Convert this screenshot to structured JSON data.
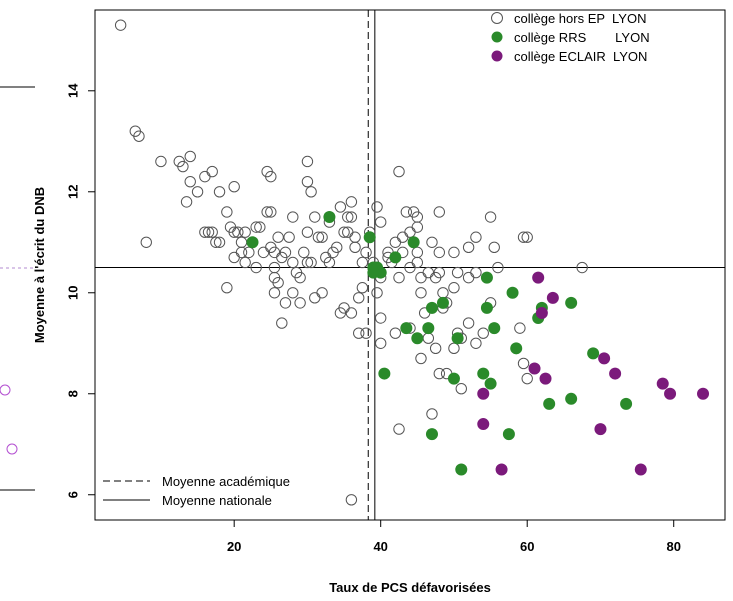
{
  "chart_data": {
    "type": "scatter",
    "xlabel": "Taux de PCS défavorisées",
    "ylabel": "Moyenne à l'écrit du DNB",
    "xlim": [
      1,
      87
    ],
    "ylim": [
      5.5,
      15.6
    ],
    "xticks": [
      20,
      40,
      60,
      80
    ],
    "yticks": [
      6,
      8,
      10,
      12,
      14
    ],
    "grid": false,
    "legend_position": "top-right",
    "reference_lines": {
      "moyenne_academique": {
        "label": "Moyenne académique",
        "style": "dashed",
        "x": 38.3,
        "y": 10.5
      },
      "moyenne_nationale": {
        "label": "Moyenne nationale",
        "style": "solid",
        "x": 39.2,
        "y": 10.5
      }
    },
    "series": [
      {
        "name": "collège hors EP  LYON",
        "marker": "open-circle",
        "color": "#555555",
        "points": [
          [
            4.5,
            15.3
          ],
          [
            6.5,
            13.2
          ],
          [
            7,
            13.1
          ],
          [
            8,
            11
          ],
          [
            10,
            12.6
          ],
          [
            12.5,
            12.6
          ],
          [
            13,
            12.5
          ],
          [
            14,
            12.7
          ],
          [
            13.5,
            11.8
          ],
          [
            14,
            12.2
          ],
          [
            15,
            12
          ],
          [
            16,
            12.3
          ],
          [
            17,
            12.4
          ],
          [
            18,
            12
          ],
          [
            16,
            11.2
          ],
          [
            16.5,
            11.2
          ],
          [
            17,
            11.2
          ],
          [
            17.5,
            11
          ],
          [
            18,
            11
          ],
          [
            19,
            11.6
          ],
          [
            19.5,
            11.3
          ],
          [
            20,
            11.2
          ],
          [
            20,
            10.7
          ],
          [
            20.5,
            11.2
          ],
          [
            21,
            11
          ],
          [
            21,
            10.8
          ],
          [
            21.5,
            11.2
          ],
          [
            20,
            12.1
          ],
          [
            19,
            10.1
          ],
          [
            22,
            10.8
          ],
          [
            23,
            11.3
          ],
          [
            23.5,
            11.3
          ],
          [
            24,
            10.8
          ],
          [
            24.5,
            11.6
          ],
          [
            25,
            11.6
          ],
          [
            25,
            10.9
          ],
          [
            25.5,
            10.8
          ],
          [
            24.5,
            12.4
          ],
          [
            25,
            12.3
          ],
          [
            25.5,
            10.5
          ],
          [
            25.5,
            10.3
          ],
          [
            25.5,
            10
          ],
          [
            26,
            10.2
          ],
          [
            26.5,
            10.7
          ],
          [
            27,
            10.8
          ],
          [
            26.5,
            9.4
          ],
          [
            27,
            9.8
          ],
          [
            28,
            10
          ],
          [
            27.5,
            11.1
          ],
          [
            28,
            11.5
          ],
          [
            28.5,
            10.4
          ],
          [
            29,
            10.3
          ],
          [
            29.5,
            10.8
          ],
          [
            29,
            9.8
          ],
          [
            30,
            10.6
          ],
          [
            30.5,
            10.6
          ],
          [
            30,
            12.2
          ],
          [
            30,
            12.6
          ],
          [
            30.5,
            12
          ],
          [
            30,
            11.2
          ],
          [
            31,
            11.5
          ],
          [
            31.5,
            11.1
          ],
          [
            32,
            11.1
          ],
          [
            32.5,
            10.7
          ],
          [
            32,
            10
          ],
          [
            33,
            11.4
          ],
          [
            33.5,
            10.8
          ],
          [
            34,
            10.9
          ],
          [
            34.5,
            11.7
          ],
          [
            34.5,
            9.6
          ],
          [
            35,
            9.7
          ],
          [
            35,
            11.2
          ],
          [
            35.5,
            11.2
          ],
          [
            36,
            11.5
          ],
          [
            36,
            11.8
          ],
          [
            36.5,
            11.1
          ],
          [
            37,
            9.9
          ],
          [
            37.5,
            10.1
          ],
          [
            37.5,
            10.6
          ],
          [
            38,
            10.8
          ],
          [
            38.5,
            11.2
          ],
          [
            39,
            10.6
          ],
          [
            39.5,
            11.7
          ],
          [
            40,
            11.4
          ],
          [
            40,
            10.3
          ],
          [
            39.5,
            10
          ],
          [
            38,
            9.2
          ],
          [
            40,
            9
          ],
          [
            41,
            10.8
          ],
          [
            41.5,
            10.6
          ],
          [
            42,
            11
          ],
          [
            42.5,
            10.3
          ],
          [
            43,
            10.8
          ],
          [
            43,
            11.1
          ],
          [
            43.5,
            11.6
          ],
          [
            44,
            11.2
          ],
          [
            44.5,
            11.6
          ],
          [
            45,
            11.3
          ],
          [
            45,
            10.8
          ],
          [
            45,
            10.6
          ],
          [
            45.5,
            10.3
          ],
          [
            45.5,
            10
          ],
          [
            46,
            9.6
          ],
          [
            46.5,
            10.4
          ],
          [
            47,
            9.7
          ],
          [
            47.5,
            10.3
          ],
          [
            48,
            10.8
          ],
          [
            48,
            10.4
          ],
          [
            48.5,
            10
          ],
          [
            48.5,
            9.7
          ],
          [
            49,
            9.8
          ],
          [
            50,
            10.8
          ],
          [
            50.5,
            10.4
          ],
          [
            50,
            10.1
          ],
          [
            52,
            10.3
          ],
          [
            53,
            10.4
          ],
          [
            53,
            11.1
          ],
          [
            52,
            9.4
          ],
          [
            53,
            9
          ],
          [
            50,
            8.9
          ],
          [
            50.5,
            9.2
          ],
          [
            51,
            9.1
          ],
          [
            51,
            8.1
          ],
          [
            48,
            8.4
          ],
          [
            49,
            8.4
          ],
          [
            47,
            7.6
          ],
          [
            42.5,
            7.3
          ],
          [
            36,
            5.9
          ],
          [
            40,
            9.5
          ],
          [
            42,
            9.2
          ],
          [
            44,
            9.3
          ],
          [
            46.5,
            9.1
          ],
          [
            45.5,
            8.7
          ],
          [
            47.5,
            8.9
          ],
          [
            55,
            9.8
          ],
          [
            56,
            10.5
          ],
          [
            59,
            9.3
          ],
          [
            60,
            8.3
          ],
          [
            59.5,
            8.6
          ],
          [
            54,
            9.2
          ],
          [
            55.5,
            10.9
          ],
          [
            55,
            11.5
          ],
          [
            48,
            11.6
          ],
          [
            42.5,
            12.4
          ],
          [
            45,
            11.5
          ],
          [
            47,
            11
          ],
          [
            52,
            10.9
          ],
          [
            59.5,
            11.1
          ],
          [
            60,
            11.1
          ],
          [
            67.5,
            10.5
          ],
          [
            37,
            9.2
          ],
          [
            36,
            9.6
          ],
          [
            44,
            10.5
          ],
          [
            41,
            10.7
          ],
          [
            33,
            10.6
          ],
          [
            31,
            9.9
          ],
          [
            35.5,
            11.5
          ],
          [
            36.5,
            10.9
          ],
          [
            22.5,
            11
          ],
          [
            23,
            10.5
          ],
          [
            21.5,
            10.6
          ],
          [
            26,
            11.1
          ],
          [
            28,
            10.6
          ]
        ]
      },
      {
        "name": "collège RRS        LYON",
        "marker": "filled-circle",
        "color": "#2a8a2a",
        "points": [
          [
            22.5,
            11
          ],
          [
            33,
            11.5
          ],
          [
            38.5,
            11.1
          ],
          [
            39,
            10.5
          ],
          [
            39.5,
            10.5
          ],
          [
            40,
            10.4
          ],
          [
            39,
            10.4
          ],
          [
            42,
            10.7
          ],
          [
            44.5,
            11
          ],
          [
            40.5,
            8.4
          ],
          [
            43.5,
            9.3
          ],
          [
            45,
            9.1
          ],
          [
            46.5,
            9.3
          ],
          [
            47,
            9.7
          ],
          [
            48.5,
            9.8
          ],
          [
            50.5,
            9.1
          ],
          [
            54.5,
            10.3
          ],
          [
            54.5,
            9.7
          ],
          [
            55.5,
            9.3
          ],
          [
            58,
            10
          ],
          [
            61.5,
            9.5
          ],
          [
            62,
            9.7
          ],
          [
            66,
            9.8
          ],
          [
            58.5,
            8.9
          ],
          [
            50,
            8.3
          ],
          [
            54,
            8.4
          ],
          [
            55,
            8.2
          ],
          [
            47,
            7.2
          ],
          [
            51,
            6.5
          ],
          [
            57.5,
            7.2
          ],
          [
            63,
            7.8
          ],
          [
            66,
            7.9
          ],
          [
            69,
            8.8
          ],
          [
            73.5,
            7.8
          ]
        ]
      },
      {
        "name": "collège ECLAIR  LYON",
        "marker": "filled-circle",
        "color": "#7b1a7b",
        "points": [
          [
            61.5,
            10.3
          ],
          [
            63.5,
            9.9
          ],
          [
            62,
            9.6
          ],
          [
            61,
            8.5
          ],
          [
            62.5,
            8.3
          ],
          [
            54,
            8
          ],
          [
            54,
            7.4
          ],
          [
            56.5,
            6.5
          ],
          [
            70.5,
            8.7
          ],
          [
            72,
            8.4
          ],
          [
            70,
            7.3
          ],
          [
            75.5,
            6.5
          ],
          [
            78.5,
            8.2
          ],
          [
            79.5,
            8
          ],
          [
            84,
            8
          ]
        ]
      }
    ],
    "legend": [
      {
        "label": "collège hors EP  LYON",
        "marker": "open-circle"
      },
      {
        "label": "collège RRS        LYON",
        "marker": "filled-circle"
      },
      {
        "label": "collège ECLAIR  LYON",
        "marker": "filled-circle"
      }
    ]
  }
}
